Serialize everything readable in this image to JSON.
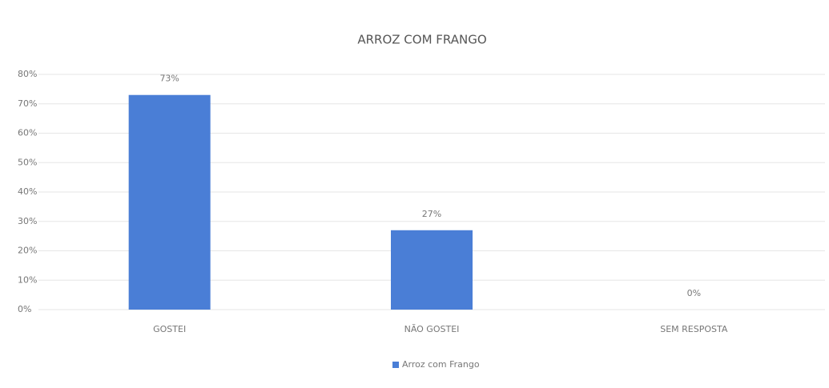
{
  "chart_data": {
    "type": "bar",
    "title": "ARROZ COM FRANGO",
    "categories": [
      "GOSTEI",
      "NÃO GOSTEI",
      "SEM RESPOSTA"
    ],
    "series": [
      {
        "name": "Arroz com Frango",
        "color": "#4a7ed6",
        "values": [
          73,
          27,
          0
        ],
        "value_labels": [
          "73%",
          "27%",
          "0%"
        ]
      }
    ],
    "ylim": [
      0,
      80
    ],
    "yticks": [
      {
        "value": 0,
        "label": "0%"
      },
      {
        "value": 10,
        "label": "10%"
      },
      {
        "value": 20,
        "label": "20%"
      },
      {
        "value": 30,
        "label": "30%"
      },
      {
        "value": 40,
        "label": "40%"
      },
      {
        "value": 50,
        "label": "50%"
      },
      {
        "value": 60,
        "label": "60%"
      },
      {
        "value": 70,
        "label": "70%"
      },
      {
        "value": 80,
        "label": "80%"
      }
    ],
    "grid": true,
    "legend": "bottom"
  }
}
